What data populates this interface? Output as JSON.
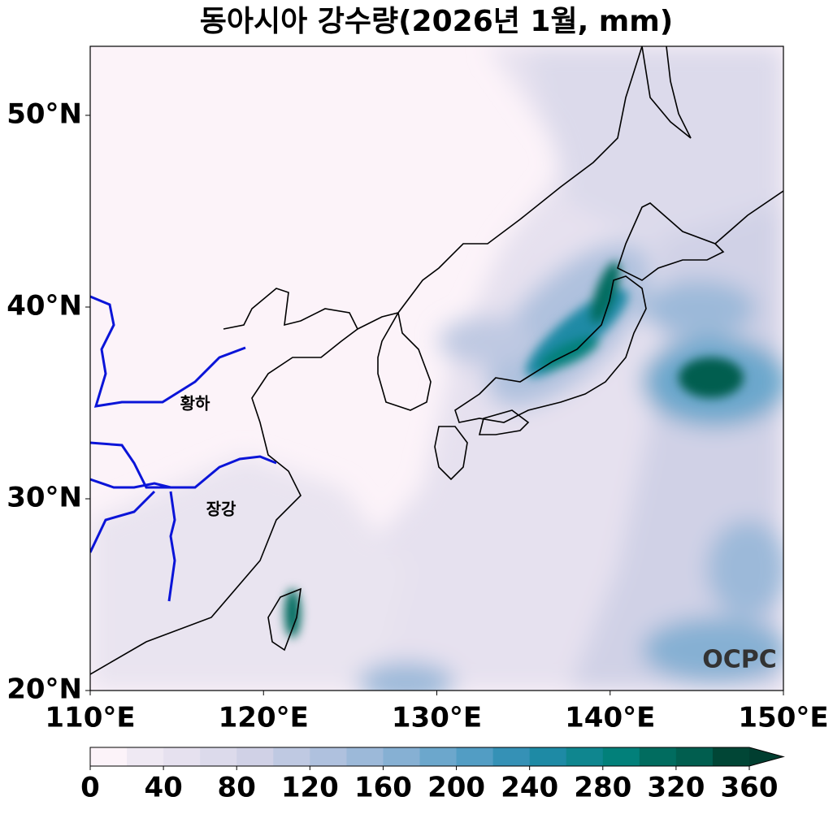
{
  "chart_data": {
    "type": "map",
    "title": "동아시아 강수량(2026년 1월, mm)",
    "xlim": [
      110,
      150
    ],
    "ylim": [
      20,
      53.6
    ],
    "xticks": [
      {
        "value": 110,
        "label": "110°E"
      },
      {
        "value": 120,
        "label": "120°E"
      },
      {
        "value": 130,
        "label": "130°E"
      },
      {
        "value": 140,
        "label": "140°E"
      },
      {
        "value": 150,
        "label": "150°E"
      }
    ],
    "yticks": [
      {
        "value": 20,
        "label": "20°N"
      },
      {
        "value": 30,
        "label": "30°N"
      },
      {
        "value": 40,
        "label": "40°N"
      },
      {
        "value": 50,
        "label": "50°N"
      }
    ],
    "colorbar": {
      "lim": [
        0,
        360
      ],
      "ticks": [
        0,
        40,
        80,
        120,
        160,
        200,
        240,
        280,
        320,
        360
      ],
      "colors": [
        "#fcf3f9",
        "#efe9f3",
        "#e6e1ef",
        "#dcdaeb",
        "#d0d1e6",
        "#bfc9e2",
        "#afc1de",
        "#9cb9d9",
        "#86b0d3",
        "#6ca7cc",
        "#529dc4",
        "#3591b6",
        "#1e8aa5",
        "#0f868f",
        "#02807a",
        "#016c5f",
        "#015e4f",
        "#014636"
      ],
      "extend_color": "#013e30"
    },
    "annotations": [
      "황하",
      "장강",
      "OCPC"
    ]
  }
}
